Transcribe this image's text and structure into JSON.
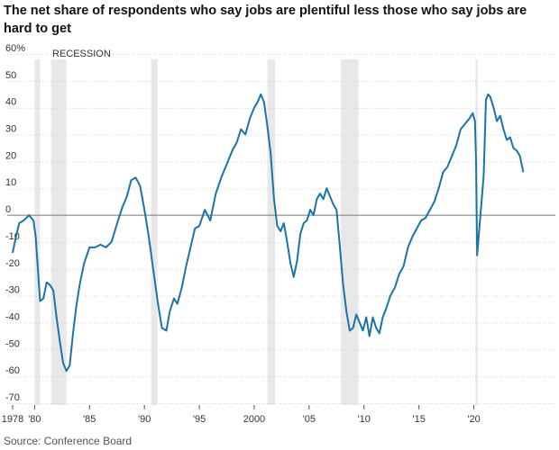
{
  "chart_data": {
    "type": "line",
    "title": "The net share of respondents who say jobs are plentiful less those who say jobs are hard to get",
    "source": "Source: Conference Board",
    "xlabel": "",
    "ylabel": "",
    "ylim": [
      -70,
      60
    ],
    "xlim": [
      1977.7,
      2024.8
    ],
    "yticks": [
      60,
      50,
      40,
      30,
      20,
      10,
      0,
      -10,
      -20,
      -30,
      -40,
      -50,
      -60,
      -70
    ],
    "ytick_labels": [
      "60%",
      "50",
      "40",
      "30",
      "20",
      "10",
      "0",
      "-10",
      "-20",
      "-30",
      "-40",
      "-50",
      "-60",
      "-70"
    ],
    "xticks": [
      1978,
      1980,
      1985,
      1990,
      1995,
      2000,
      2005,
      2010,
      2015,
      2020
    ],
    "xtick_labels": [
      "1978",
      "'80",
      "'85",
      "'90",
      "'95",
      "2000",
      "'05",
      "'10",
      "'15",
      "'20"
    ],
    "recession_label": "RECESSION",
    "recessions": [
      [
        1980.0,
        1980.5
      ],
      [
        1981.5,
        1982.9
      ],
      [
        1990.6,
        1991.2
      ],
      [
        2001.2,
        2001.9
      ],
      [
        2007.9,
        2009.5
      ],
      [
        2020.15,
        2020.35
      ]
    ],
    "colors": {
      "line": "#1b74a8",
      "recession": "#e8e8e8",
      "zero_line": "#777777",
      "grid": "#d4d4d4"
    },
    "grid": true,
    "series": [
      {
        "x": [
          1978.0,
          1978.3,
          1978.6,
          1979.0,
          1979.5,
          1979.9,
          1980.1,
          1980.3,
          1980.5,
          1980.8,
          1981.1,
          1981.4,
          1981.7,
          1982.0,
          1982.3,
          1982.6,
          1982.9,
          1983.2,
          1983.5,
          1983.8,
          1984.1,
          1984.5,
          1985.0,
          1985.5,
          1986.0,
          1986.5,
          1987.0,
          1987.3,
          1987.6,
          1988.0,
          1988.4,
          1988.8,
          1989.2,
          1989.6,
          1990.0,
          1990.4,
          1990.8,
          1991.2,
          1991.6,
          1992.0,
          1992.3,
          1992.7,
          1993.0,
          1993.4,
          1993.8,
          1994.2,
          1994.6,
          1995.0,
          1995.5,
          1996.0,
          1996.5,
          1997.0,
          1997.5,
          1998.0,
          1998.4,
          1998.8,
          1999.2,
          1999.6,
          2000.0,
          2000.3,
          2000.6,
          2000.9,
          2001.2,
          2001.5,
          2001.8,
          2002.1,
          2002.4,
          2002.7,
          2003.0,
          2003.3,
          2003.6,
          2003.9,
          2004.2,
          2004.5,
          2004.8,
          2005.1,
          2005.4,
          2005.7,
          2006.0,
          2006.3,
          2006.6,
          2006.9,
          2007.2,
          2007.5,
          2007.8,
          2008.1,
          2008.4,
          2008.7,
          2009.0,
          2009.3,
          2009.6,
          2009.9,
          2010.2,
          2010.5,
          2010.8,
          2011.1,
          2011.4,
          2011.7,
          2012.0,
          2012.4,
          2012.8,
          2013.2,
          2013.6,
          2014.0,
          2014.4,
          2014.8,
          2015.2,
          2015.6,
          2016.0,
          2016.4,
          2016.8,
          2017.2,
          2017.6,
          2018.0,
          2018.4,
          2018.8,
          2019.2,
          2019.6,
          2019.9,
          2020.1,
          2020.2,
          2020.3,
          2020.5,
          2020.7,
          2020.9,
          2021.1,
          2021.3,
          2021.5,
          2021.8,
          2022.1,
          2022.4,
          2022.7,
          2023.0,
          2023.3,
          2023.6,
          2023.9,
          2024.2,
          2024.5
        ],
        "values": [
          -14,
          -8,
          -3,
          -2,
          0,
          -2,
          -8,
          -20,
          -32,
          -31,
          -25,
          -26,
          -28,
          -38,
          -47,
          -55,
          -58,
          -56,
          -44,
          -34,
          -26,
          -18,
          -12,
          -12,
          -11,
          -12,
          -10,
          -6,
          -2,
          3,
          7,
          13,
          14,
          11,
          2,
          -8,
          -20,
          -32,
          -42,
          -43,
          -36,
          -31,
          -33,
          -27,
          -19,
          -12,
          -5,
          -4,
          2,
          -2,
          8,
          14,
          19,
          24,
          27,
          32,
          30,
          36,
          40,
          42,
          45,
          42,
          33,
          23,
          6,
          -4,
          -6,
          -3,
          -10,
          -18,
          -23,
          -17,
          -7,
          -3,
          -2,
          2,
          0,
          6,
          8,
          6,
          10,
          7,
          4,
          2,
          -12,
          -26,
          -36,
          -43,
          -42,
          -37,
          -40,
          -43,
          -38,
          -45,
          -38,
          -42,
          -44,
          -38,
          -35,
          -30,
          -27,
          -22,
          -19,
          -12,
          -8,
          -5,
          -2,
          -1,
          2,
          5,
          10,
          16,
          18,
          22,
          26,
          32,
          34,
          36,
          38,
          35,
          20,
          -15,
          -5,
          5,
          15,
          43,
          45,
          44,
          40,
          35,
          37,
          32,
          28,
          29,
          25,
          24,
          22,
          16
        ]
      }
    ]
  }
}
